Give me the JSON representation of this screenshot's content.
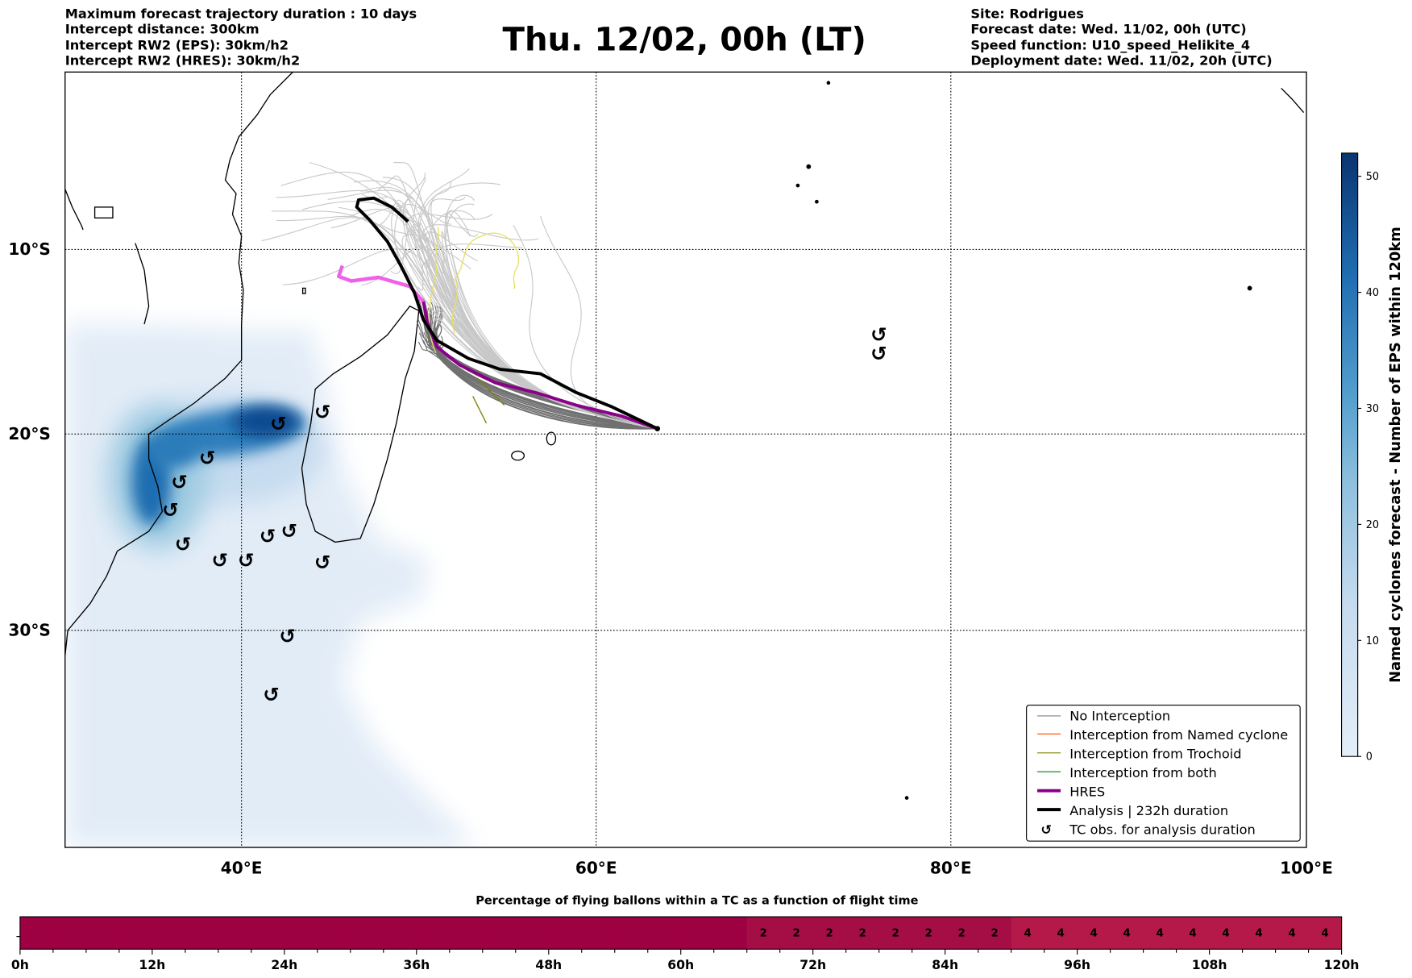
{
  "header": {
    "left": [
      "Maximum forecast trajectory duration : 10 days",
      "Intercept distance: 300km",
      "Intercept RW2 (EPS):  30km/h2",
      "Intercept RW2 (HRES): 30km/h2"
    ],
    "title": "Thu. 12/02, 00h (LT)",
    "right": [
      "Site: Rodrigues",
      "Forecast date: Wed. 11/02, 00h (UTC)",
      "Speed function: U10_speed_Helikite_4",
      "Deployment date: Wed. 11/02, 20h (UTC)"
    ]
  },
  "map": {
    "lat_labels": [
      "10°S",
      "20°S",
      "30°S"
    ],
    "lon_labels": [
      "40°E",
      "60°E",
      "80°E",
      "100°E"
    ],
    "tc_symbol": "↺",
    "legend": [
      {
        "label": "No Interception",
        "color": "#808080"
      },
      {
        "label": "Interception from Named cyclone",
        "color": "#ff4500"
      },
      {
        "label": "Interception from Trochoid",
        "color": "#808000"
      },
      {
        "label": "Interception from both",
        "color": "#008000"
      },
      {
        "label": "HRES",
        "color": "#8b008b"
      },
      {
        "label": "Analysis | 232h duration",
        "color": "#000000"
      },
      {
        "label": "TC obs. for analysis duration",
        "color": "#000000",
        "icon": "↺"
      }
    ]
  },
  "colorbar": {
    "label": "Named cyclones forecast - Number of EPS within 120km",
    "ticks": [
      "0",
      "10",
      "20",
      "30",
      "40",
      "50"
    ],
    "range": [
      0,
      52
    ]
  },
  "chart_data": {
    "type": "heatmap",
    "title": "Percentage of flying ballons within a TC as a function of flight time",
    "xlabel": "",
    "x_ticks": [
      "0h",
      "12h",
      "24h",
      "36h",
      "48h",
      "60h",
      "72h",
      "84h",
      "96h",
      "108h",
      "120h"
    ],
    "xlim": [
      0,
      120
    ],
    "cell_hours": 3,
    "values": [
      0,
      0,
      0,
      0,
      0,
      0,
      0,
      0,
      0,
      0,
      0,
      0,
      0,
      0,
      0,
      0,
      0,
      0,
      0,
      0,
      0,
      0,
      2,
      2,
      2,
      2,
      2,
      2,
      2,
      2,
      4,
      4,
      4,
      4,
      4,
      4,
      4,
      4,
      4,
      4
    ],
    "colors": {
      "0": "#9e0142",
      "2": "#a50d45",
      "4": "#b5194a"
    }
  }
}
